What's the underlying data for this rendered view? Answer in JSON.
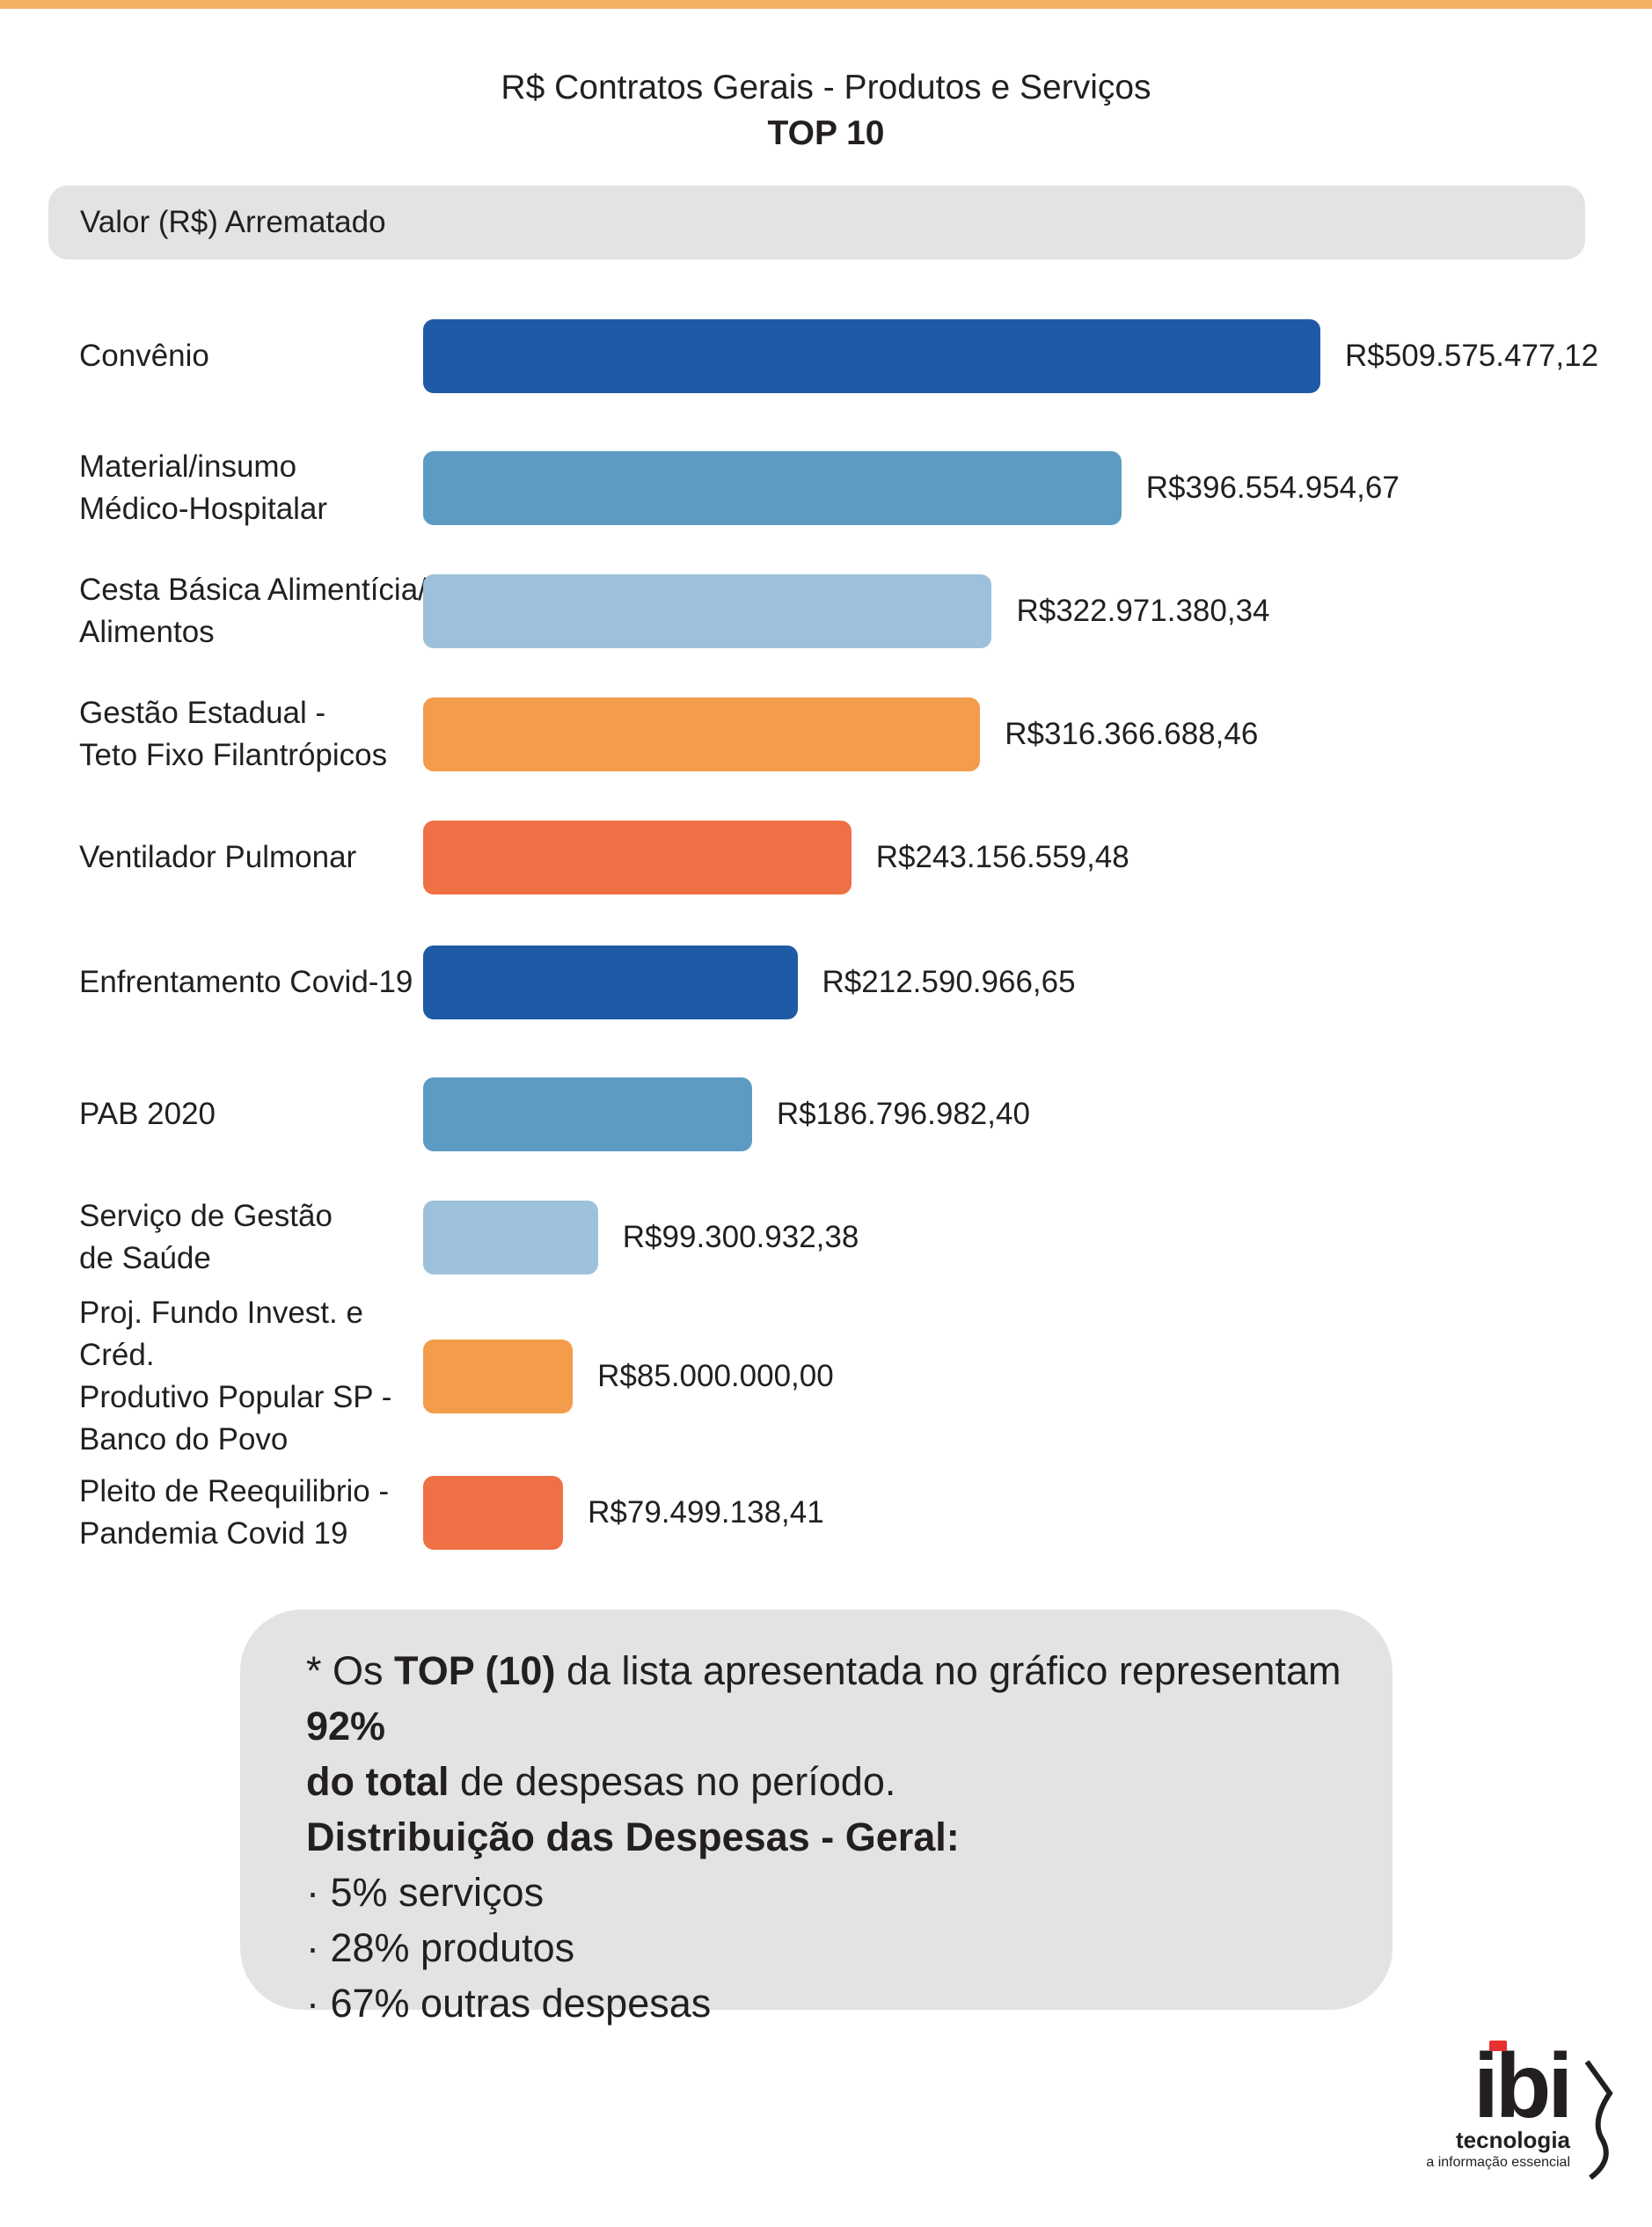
{
  "title": "R$ Contratos Gerais - Produtos e Serviços",
  "subtitle": "TOP 10",
  "axis_label": "Valor (R$) Arrematado",
  "chart_data": {
    "type": "bar",
    "orientation": "horizontal",
    "title": "R$ Contratos Gerais - Produtos e Serviços",
    "subtitle": "TOP 10",
    "xlabel": "Valor (R$) Arrematado",
    "categories": [
      "Convênio",
      "Material/insumo\nMédico-Hospitalar",
      "Cesta Básica Alimentícia/\nAlimentos",
      "Gestão Estadual -\nTeto Fixo Filantrópicos",
      "Ventilador Pulmonar",
      "Enfrentamento Covid-19",
      "PAB 2020",
      "Serviço de Gestão\nde Saúde",
      "Proj. Fundo Invest. e Créd.\nProdutivo Popular SP -\nBanco do Povo",
      "Pleito de Reequilibrio -\nPandemia Covid 19"
    ],
    "values": [
      509575477.12,
      396554954.67,
      322971380.34,
      316366688.46,
      243156559.48,
      212590966.65,
      186796982.4,
      99300932.38,
      85000000.0,
      79499138.41
    ],
    "value_labels": [
      "R$509.575.477,12",
      "R$396.554.954,67",
      "R$322.971.380,34",
      "R$316.366.688,46",
      "R$243.156.559,48",
      "R$212.590.966,65",
      "R$186.796.982,40",
      "R$99.300.932,38",
      "R$85.000.000,00",
      "R$79.499.138,41"
    ],
    "colors": [
      "#1f5aa6",
      "#5d9bc3",
      "#9dc1da",
      "#f39c4b",
      "#ef7045",
      "#1f5aa6",
      "#5d9bc3",
      "#9dc1da",
      "#f39c4b",
      "#ef7045"
    ],
    "grid": false,
    "legend": "none"
  },
  "note": {
    "line1_a": "* Os ",
    "line1_b": "TOP (10)",
    "line1_c": " da lista apresentada no gráfico representam ",
    "line1_d": "92%",
    "line2_a": "do total",
    "line2_b": " de despesas no período.",
    "heading": "Distribuição das Despesas - Geral:",
    "items": [
      "· 5% serviços",
      "· 28% produtos",
      "· 67% outras despesas"
    ]
  },
  "logo": {
    "name": "ibi",
    "sub": "tecnologia",
    "tagline": "a informação essencial"
  }
}
